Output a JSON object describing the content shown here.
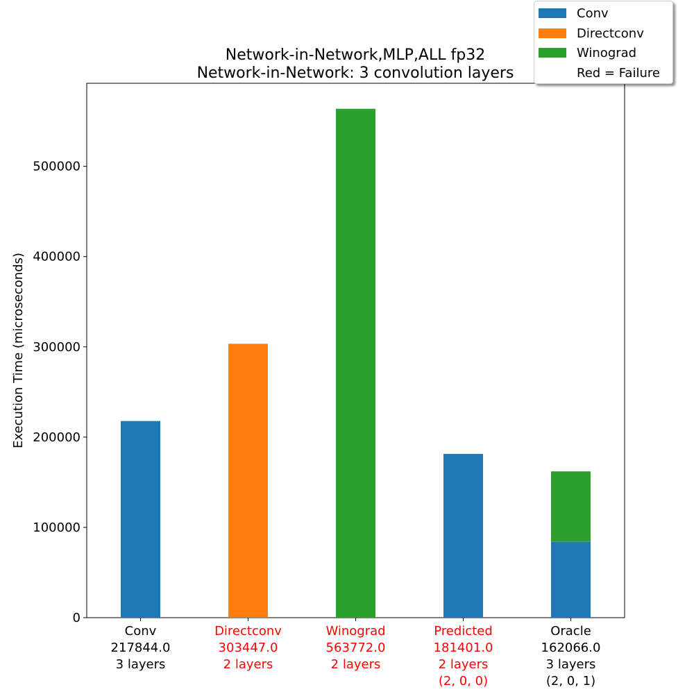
{
  "chart_data": {
    "type": "bar",
    "stacked": true,
    "title": "Network-in-Network,MLP,ALL fp32",
    "subtitle": "Network-in-Network: 3 convolution layers",
    "xlabel": "",
    "ylabel": "Execution Time (microseconds)",
    "ylim": [
      0,
      592000
    ],
    "yticks": [
      0,
      100000,
      200000,
      300000,
      400000,
      500000
    ],
    "ytick_labels": [
      "0",
      "100000",
      "200000",
      "300000",
      "400000",
      "500000"
    ],
    "grid": false,
    "legend_position": "top-right",
    "legend": [
      {
        "label": "Conv",
        "color": "#1f77b4"
      },
      {
        "label": "Directconv",
        "color": "#ff7f0e"
      },
      {
        "label": "Winograd",
        "color": "#2ca02c"
      },
      {
        "label": "Red = Failure",
        "color": ""
      }
    ],
    "categories": [
      {
        "lines": [
          "Conv",
          "217844.0",
          "3 layers"
        ],
        "failure": false,
        "segments": [
          {
            "series": "Conv",
            "value": 217844.0
          }
        ]
      },
      {
        "lines": [
          "Directconv",
          "303447.0",
          "2 layers"
        ],
        "failure": true,
        "segments": [
          {
            "series": "Directconv",
            "value": 303447.0
          }
        ]
      },
      {
        "lines": [
          "Winograd",
          "563772.0",
          "2 layers"
        ],
        "failure": true,
        "segments": [
          {
            "series": "Winograd",
            "value": 563772.0
          }
        ]
      },
      {
        "lines": [
          "Predicted",
          "181401.0",
          "2 layers",
          "(2, 0, 0)"
        ],
        "failure": true,
        "segments": [
          {
            "series": "Conv",
            "value": 181401.0
          }
        ]
      },
      {
        "lines": [
          "Oracle",
          "162066.0",
          "3 layers",
          "(2, 0, 1)"
        ],
        "failure": false,
        "segments": [
          {
            "series": "Conv",
            "value": 84000
          },
          {
            "series": "Winograd",
            "value": 78066
          }
        ]
      }
    ],
    "colors": {
      "Conv": "#1f77b4",
      "Directconv": "#ff7f0e",
      "Winograd": "#2ca02c",
      "failure_text": "#ff0000",
      "normal_text": "#000000"
    }
  }
}
